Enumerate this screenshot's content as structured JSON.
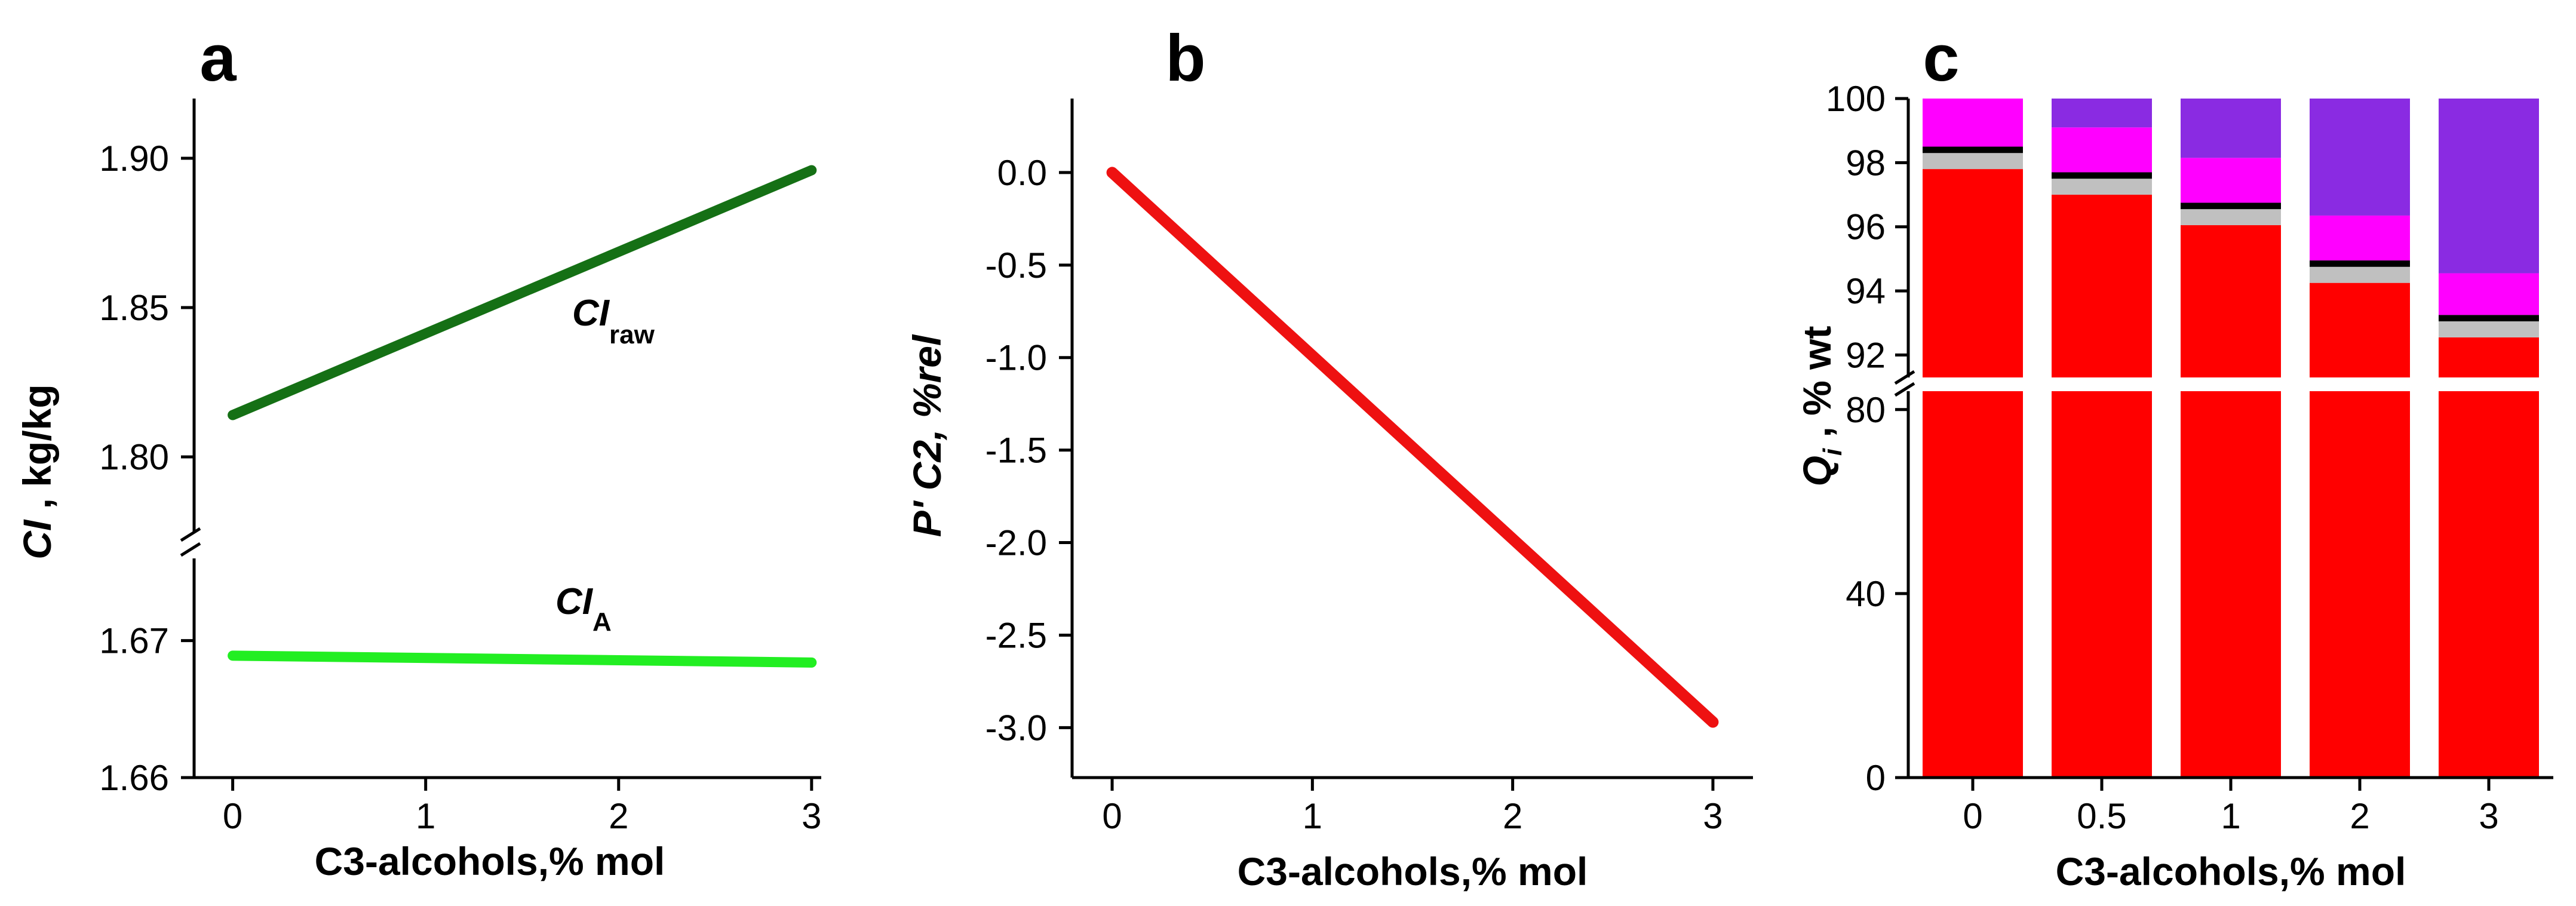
{
  "chart_data": [
    {
      "panel": "a",
      "type": "line",
      "xlabel": "C3-alcohols,% mol",
      "ylabel_main": "CI",
      "ylabel_unit": " , kg/kg",
      "x_ticks": [
        0,
        1,
        2,
        3
      ],
      "xlim": [
        -0.2,
        3.05
      ],
      "y_upper_ticks": [
        "1.80",
        "1.85",
        "1.90"
      ],
      "y_upper_range": [
        1.775,
        1.92
      ],
      "y_lower_ticks": [
        "1.66",
        "1.67"
      ],
      "y_lower_range": [
        1.66,
        1.676
      ],
      "series": [
        {
          "name": "CIraw",
          "label_main": "CI",
          "label_sub": "raw",
          "color": "#157015",
          "x": [
            0,
            3
          ],
          "y": [
            1.814,
            1.896
          ]
        },
        {
          "name": "CIA",
          "label_main": "CI",
          "label_sub": "A",
          "color": "#22ee22",
          "x": [
            0,
            3
          ],
          "y": [
            1.6689,
            1.6684
          ]
        }
      ]
    },
    {
      "panel": "b",
      "type": "line",
      "xlabel": "C3-alcohols,% mol",
      "ylabel": "P' C2, %rel",
      "x_ticks": [
        0,
        1,
        2,
        3
      ],
      "xlim": [
        -0.2,
        3.2
      ],
      "y_ticks": [
        "0.0",
        "-0.5",
        "-1.0",
        "-1.5",
        "-2.0",
        "-2.5",
        "-3.0"
      ],
      "ylim": [
        -3.27,
        0.4
      ],
      "series": [
        {
          "name": "P'C2",
          "color": "#ee1111",
          "x": [
            0,
            3
          ],
          "y": [
            0,
            -2.97
          ]
        }
      ]
    },
    {
      "panel": "c",
      "type": "bar",
      "stacked": true,
      "xlabel": "C3-alcohols,% mol",
      "ylabel_main": "Q",
      "ylabel_sub": "i",
      "ylabel_unit": " , % wt",
      "categories": [
        "0",
        "0.5",
        "1",
        "2",
        "3"
      ],
      "y_upper_ticks": [
        "92",
        "94",
        "96",
        "98",
        "100"
      ],
      "y_upper_range": [
        91.3,
        100
      ],
      "y_lower_ticks": [
        "0",
        "40",
        "80"
      ],
      "y_lower_range": [
        0,
        84
      ],
      "series": [
        {
          "name": "red",
          "color": "#ff0000",
          "values": [
            97.8,
            97.0,
            96.05,
            94.25,
            92.55
          ]
        },
        {
          "name": "gray",
          "color": "#c0c0c0",
          "values": [
            0.5,
            0.5,
            0.5,
            0.5,
            0.5
          ]
        },
        {
          "name": "black",
          "color": "#000000",
          "values": [
            0.2,
            0.2,
            0.2,
            0.2,
            0.2
          ]
        },
        {
          "name": "magenta",
          "color": "#ff00ff",
          "values": [
            1.5,
            1.4,
            1.4,
            1.4,
            1.3
          ]
        },
        {
          "name": "violet",
          "color": "#8a2be2",
          "values": [
            0.0,
            0.9,
            1.85,
            3.65,
            5.45
          ]
        }
      ]
    }
  ]
}
